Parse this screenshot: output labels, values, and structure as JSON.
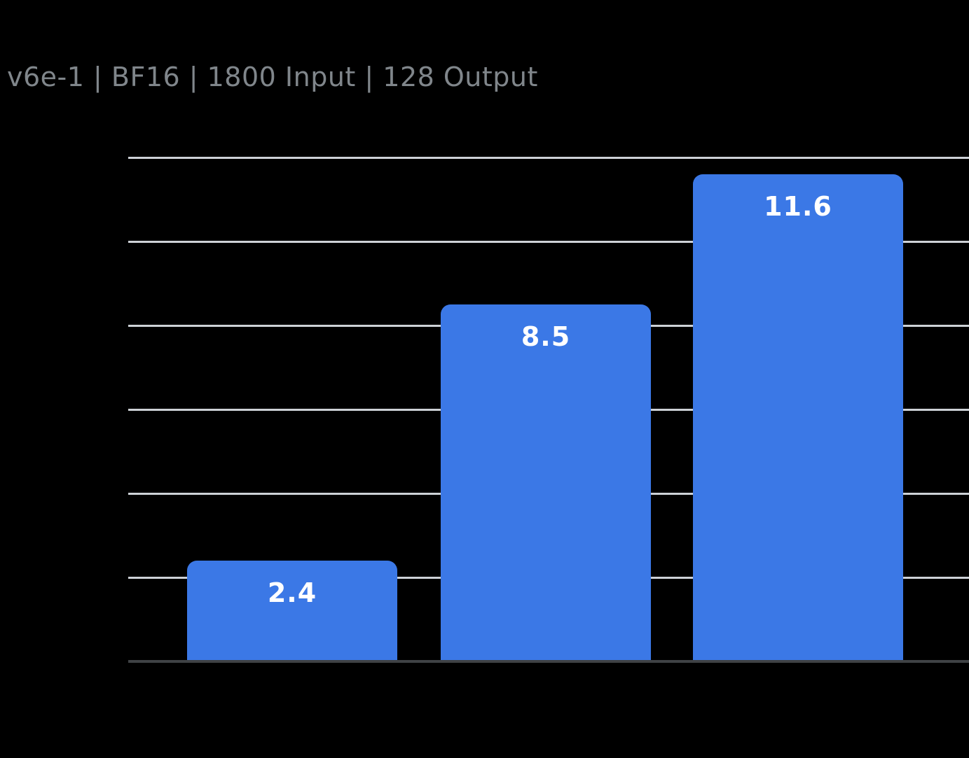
{
  "page": {
    "background": "#000000"
  },
  "header": {
    "title": "v6e-1 | BF16 | 1800 Input | 128 Output"
  },
  "chart_data": {
    "type": "bar",
    "title": "v6e-1 | BF16 | 1800 Input | 128 Output",
    "categories": [
      "",
      "",
      ""
    ],
    "values": [
      2.4,
      8.5,
      11.6
    ],
    "data_labels": [
      "2.4",
      "8.5",
      "11.6"
    ],
    "xlabel": "",
    "ylabel": "",
    "ylim": [
      0,
      12
    ],
    "ytick_step": 2,
    "gridline_values": [
      2,
      4,
      6,
      8,
      10,
      12
    ],
    "grid": "horizontal",
    "axis_tick_labels_visible": false,
    "legend": "none",
    "bar_corner_radius_px": 14
  },
  "colors": {
    "background": "#000000",
    "bar_fill": "#3B78E6",
    "gridline": "#CDD1D6",
    "axis_line": "#3F4245",
    "title_text": "#80868B",
    "value_label_text": "#FFFFFF"
  }
}
